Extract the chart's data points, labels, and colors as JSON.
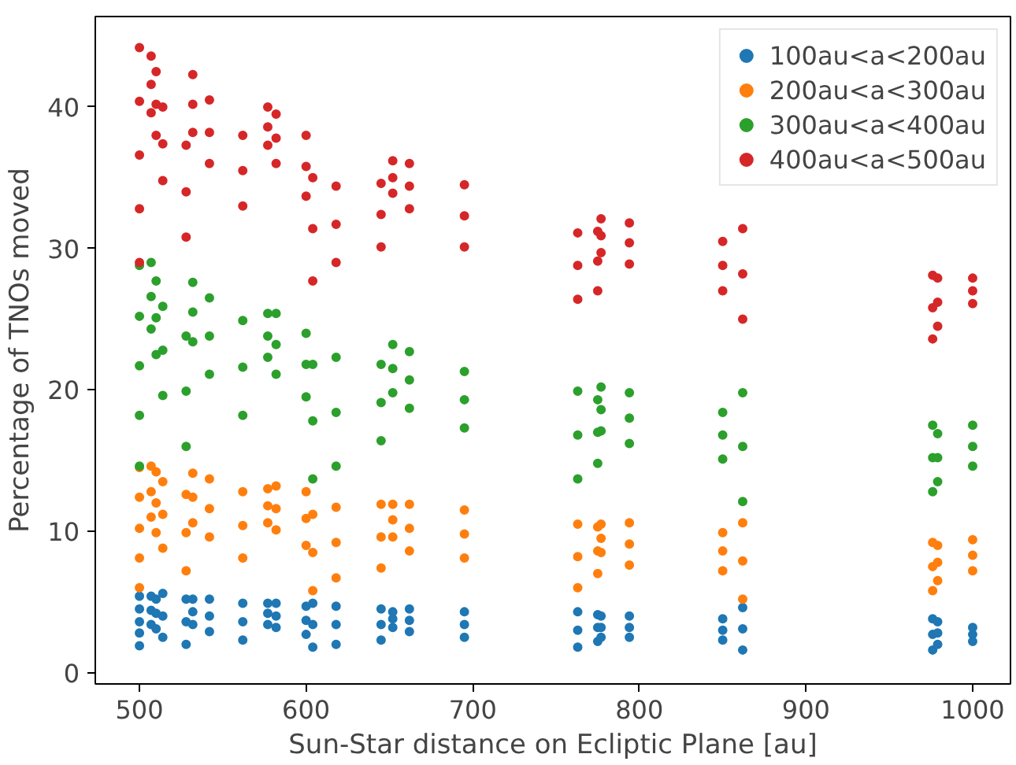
{
  "chart_data": {
    "type": "scatter",
    "xlabel": "Sun-Star distance on Ecliptic Plane [au]",
    "ylabel": "Percentage of TNOs moved",
    "xlim": [
      473.5,
      1022.7
    ],
    "ylim": [
      -0.8,
      46.4
    ],
    "xticks": [
      500,
      600,
      700,
      800,
      900,
      1000
    ],
    "yticks": [
      0,
      10,
      20,
      30,
      40
    ],
    "grid": false,
    "legend": "top right",
    "marker": "circle",
    "series": [
      {
        "name": "100au<a<200au",
        "color": "#1f77b4",
        "x": [
          500,
          500,
          500,
          500,
          500,
          507,
          507,
          507,
          510,
          510,
          510,
          514,
          514,
          514,
          528,
          528,
          528,
          532,
          532,
          532,
          542,
          542,
          542,
          562,
          562,
          562,
          577,
          577,
          577,
          582,
          582,
          582,
          600,
          600,
          600,
          604,
          604,
          604,
          618,
          618,
          618,
          645,
          645,
          645,
          652,
          652,
          652,
          662,
          662,
          662,
          695,
          695,
          695,
          763,
          763,
          763,
          775,
          775,
          775,
          777,
          777,
          777,
          794,
          794,
          794,
          850,
          850,
          850,
          862,
          862,
          862,
          976,
          976,
          976,
          979,
          979,
          979,
          1000,
          1000,
          1000
        ],
        "values": [
          5.4,
          4.5,
          3.6,
          2.8,
          1.9,
          5.4,
          4.4,
          3.4,
          5.2,
          4.2,
          3.1,
          5.6,
          4.0,
          2.5,
          5.2,
          3.6,
          2.0,
          5.2,
          4.3,
          3.4,
          5.2,
          4.0,
          2.9,
          4.9,
          3.6,
          2.3,
          4.9,
          4.2,
          3.4,
          4.9,
          4.0,
          3.2,
          4.7,
          3.7,
          2.7,
          4.9,
          3.4,
          1.8,
          4.7,
          3.4,
          2.0,
          4.5,
          3.4,
          2.3,
          4.3,
          3.8,
          3.2,
          4.5,
          3.7,
          2.9,
          4.3,
          3.4,
          2.5,
          4.3,
          3.0,
          1.8,
          4.1,
          3.2,
          2.2,
          4.0,
          3.2,
          2.5,
          4.0,
          3.2,
          2.5,
          3.8,
          3.0,
          2.3,
          4.6,
          3.1,
          1.6,
          3.8,
          2.7,
          1.6,
          3.6,
          2.8,
          2.0,
          3.2,
          2.7,
          2.2
        ]
      },
      {
        "name": "200au<a<300au",
        "color": "#ff7f0e",
        "x": [
          500,
          500,
          500,
          500,
          500,
          507,
          507,
          507,
          510,
          510,
          510,
          514,
          514,
          514,
          528,
          528,
          528,
          532,
          532,
          532,
          542,
          542,
          542,
          562,
          562,
          562,
          577,
          577,
          577,
          582,
          582,
          582,
          600,
          600,
          600,
          604,
          604,
          604,
          618,
          618,
          618,
          645,
          645,
          645,
          652,
          652,
          652,
          662,
          662,
          662,
          695,
          695,
          695,
          763,
          763,
          763,
          775,
          775,
          775,
          777,
          777,
          777,
          794,
          794,
          794,
          850,
          850,
          850,
          862,
          862,
          862,
          976,
          976,
          976,
          979,
          979,
          979,
          1000,
          1000,
          1000
        ],
        "values": [
          14.5,
          12.4,
          10.2,
          8.1,
          6.0,
          14.6,
          12.8,
          11.0,
          14.2,
          12.0,
          9.9,
          13.5,
          11.2,
          8.8,
          12.6,
          9.9,
          7.2,
          14.1,
          12.4,
          10.6,
          13.7,
          11.6,
          9.6,
          12.8,
          10.4,
          8.1,
          13.0,
          11.8,
          10.6,
          13.2,
          11.6,
          10.1,
          12.8,
          10.9,
          9.0,
          11.2,
          8.5,
          5.8,
          11.7,
          9.2,
          6.7,
          11.9,
          9.6,
          7.4,
          11.9,
          10.8,
          9.6,
          11.9,
          10.2,
          8.6,
          11.5,
          9.8,
          8.1,
          10.5,
          8.2,
          6.0,
          10.3,
          8.6,
          7.0,
          10.5,
          9.5,
          8.5,
          10.6,
          9.1,
          7.6,
          9.9,
          8.6,
          7.2,
          10.6,
          7.9,
          5.2,
          9.2,
          7.5,
          5.8,
          9.0,
          7.8,
          6.5,
          9.4,
          8.3,
          7.2
        ]
      },
      {
        "name": "300au<a<400au",
        "color": "#2ca02c",
        "x": [
          500,
          500,
          500,
          500,
          500,
          507,
          507,
          507,
          510,
          510,
          510,
          514,
          514,
          514,
          528,
          528,
          528,
          532,
          532,
          532,
          542,
          542,
          542,
          562,
          562,
          562,
          577,
          577,
          577,
          582,
          582,
          582,
          600,
          600,
          600,
          604,
          604,
          604,
          618,
          618,
          618,
          645,
          645,
          645,
          652,
          652,
          652,
          662,
          662,
          662,
          695,
          695,
          695,
          763,
          763,
          763,
          775,
          775,
          775,
          777,
          777,
          777,
          794,
          794,
          794,
          850,
          850,
          850,
          862,
          862,
          862,
          976,
          976,
          976,
          979,
          979,
          979,
          1000,
          1000,
          1000
        ],
        "values": [
          28.8,
          25.2,
          21.7,
          18.2,
          14.6,
          29.0,
          26.6,
          24.3,
          27.7,
          25.1,
          22.5,
          25.9,
          22.8,
          19.6,
          23.8,
          19.9,
          16.0,
          27.6,
          25.5,
          23.4,
          26.5,
          23.8,
          21.1,
          24.9,
          21.6,
          18.2,
          25.4,
          23.8,
          22.3,
          25.4,
          23.2,
          21.1,
          24.0,
          21.8,
          19.5,
          21.8,
          17.8,
          13.7,
          22.3,
          18.4,
          14.6,
          21.8,
          19.1,
          16.4,
          23.2,
          21.5,
          19.8,
          22.7,
          20.7,
          18.7,
          21.3,
          19.3,
          17.3,
          19.9,
          16.8,
          13.7,
          19.3,
          17.0,
          14.8,
          20.2,
          18.6,
          17.1,
          19.8,
          18.0,
          16.2,
          18.4,
          16.8,
          15.1,
          19.8,
          16.0,
          12.1,
          17.5,
          15.2,
          12.8,
          16.9,
          15.2,
          13.5,
          17.5,
          16.0,
          14.6
        ]
      },
      {
        "name": "400au<a<500au",
        "color": "#d62728",
        "x": [
          500,
          500,
          500,
          500,
          500,
          507,
          507,
          507,
          510,
          510,
          510,
          514,
          514,
          514,
          528,
          528,
          528,
          532,
          532,
          532,
          542,
          542,
          542,
          562,
          562,
          562,
          577,
          577,
          577,
          582,
          582,
          582,
          600,
          600,
          600,
          604,
          604,
          604,
          618,
          618,
          618,
          645,
          645,
          645,
          652,
          652,
          652,
          662,
          662,
          662,
          695,
          695,
          695,
          763,
          763,
          763,
          775,
          775,
          775,
          777,
          777,
          777,
          794,
          794,
          794,
          850,
          850,
          850,
          862,
          862,
          862,
          976,
          976,
          976,
          979,
          979,
          979,
          1000,
          1000,
          1000
        ],
        "values": [
          44.2,
          40.4,
          36.6,
          32.8,
          29.0,
          43.6,
          41.6,
          39.6,
          42.5,
          40.2,
          38.0,
          40.0,
          37.4,
          34.8,
          37.3,
          34.0,
          30.8,
          42.3,
          40.2,
          38.2,
          40.5,
          38.2,
          36.0,
          38.0,
          35.5,
          33.0,
          40.0,
          38.6,
          37.3,
          39.5,
          37.8,
          36.0,
          38.0,
          35.8,
          33.7,
          35.0,
          31.4,
          27.7,
          34.4,
          31.7,
          29.0,
          34.6,
          32.4,
          30.1,
          36.2,
          35.0,
          33.9,
          36.0,
          34.4,
          32.8,
          34.5,
          32.3,
          30.1,
          31.1,
          28.8,
          26.4,
          31.2,
          29.1,
          27.0,
          32.1,
          30.9,
          29.7,
          31.8,
          30.4,
          28.9,
          30.5,
          28.8,
          27.0,
          31.4,
          28.2,
          25.0,
          28.1,
          25.8,
          23.6,
          27.9,
          26.2,
          24.5,
          27.9,
          27.0,
          26.1
        ]
      }
    ]
  }
}
